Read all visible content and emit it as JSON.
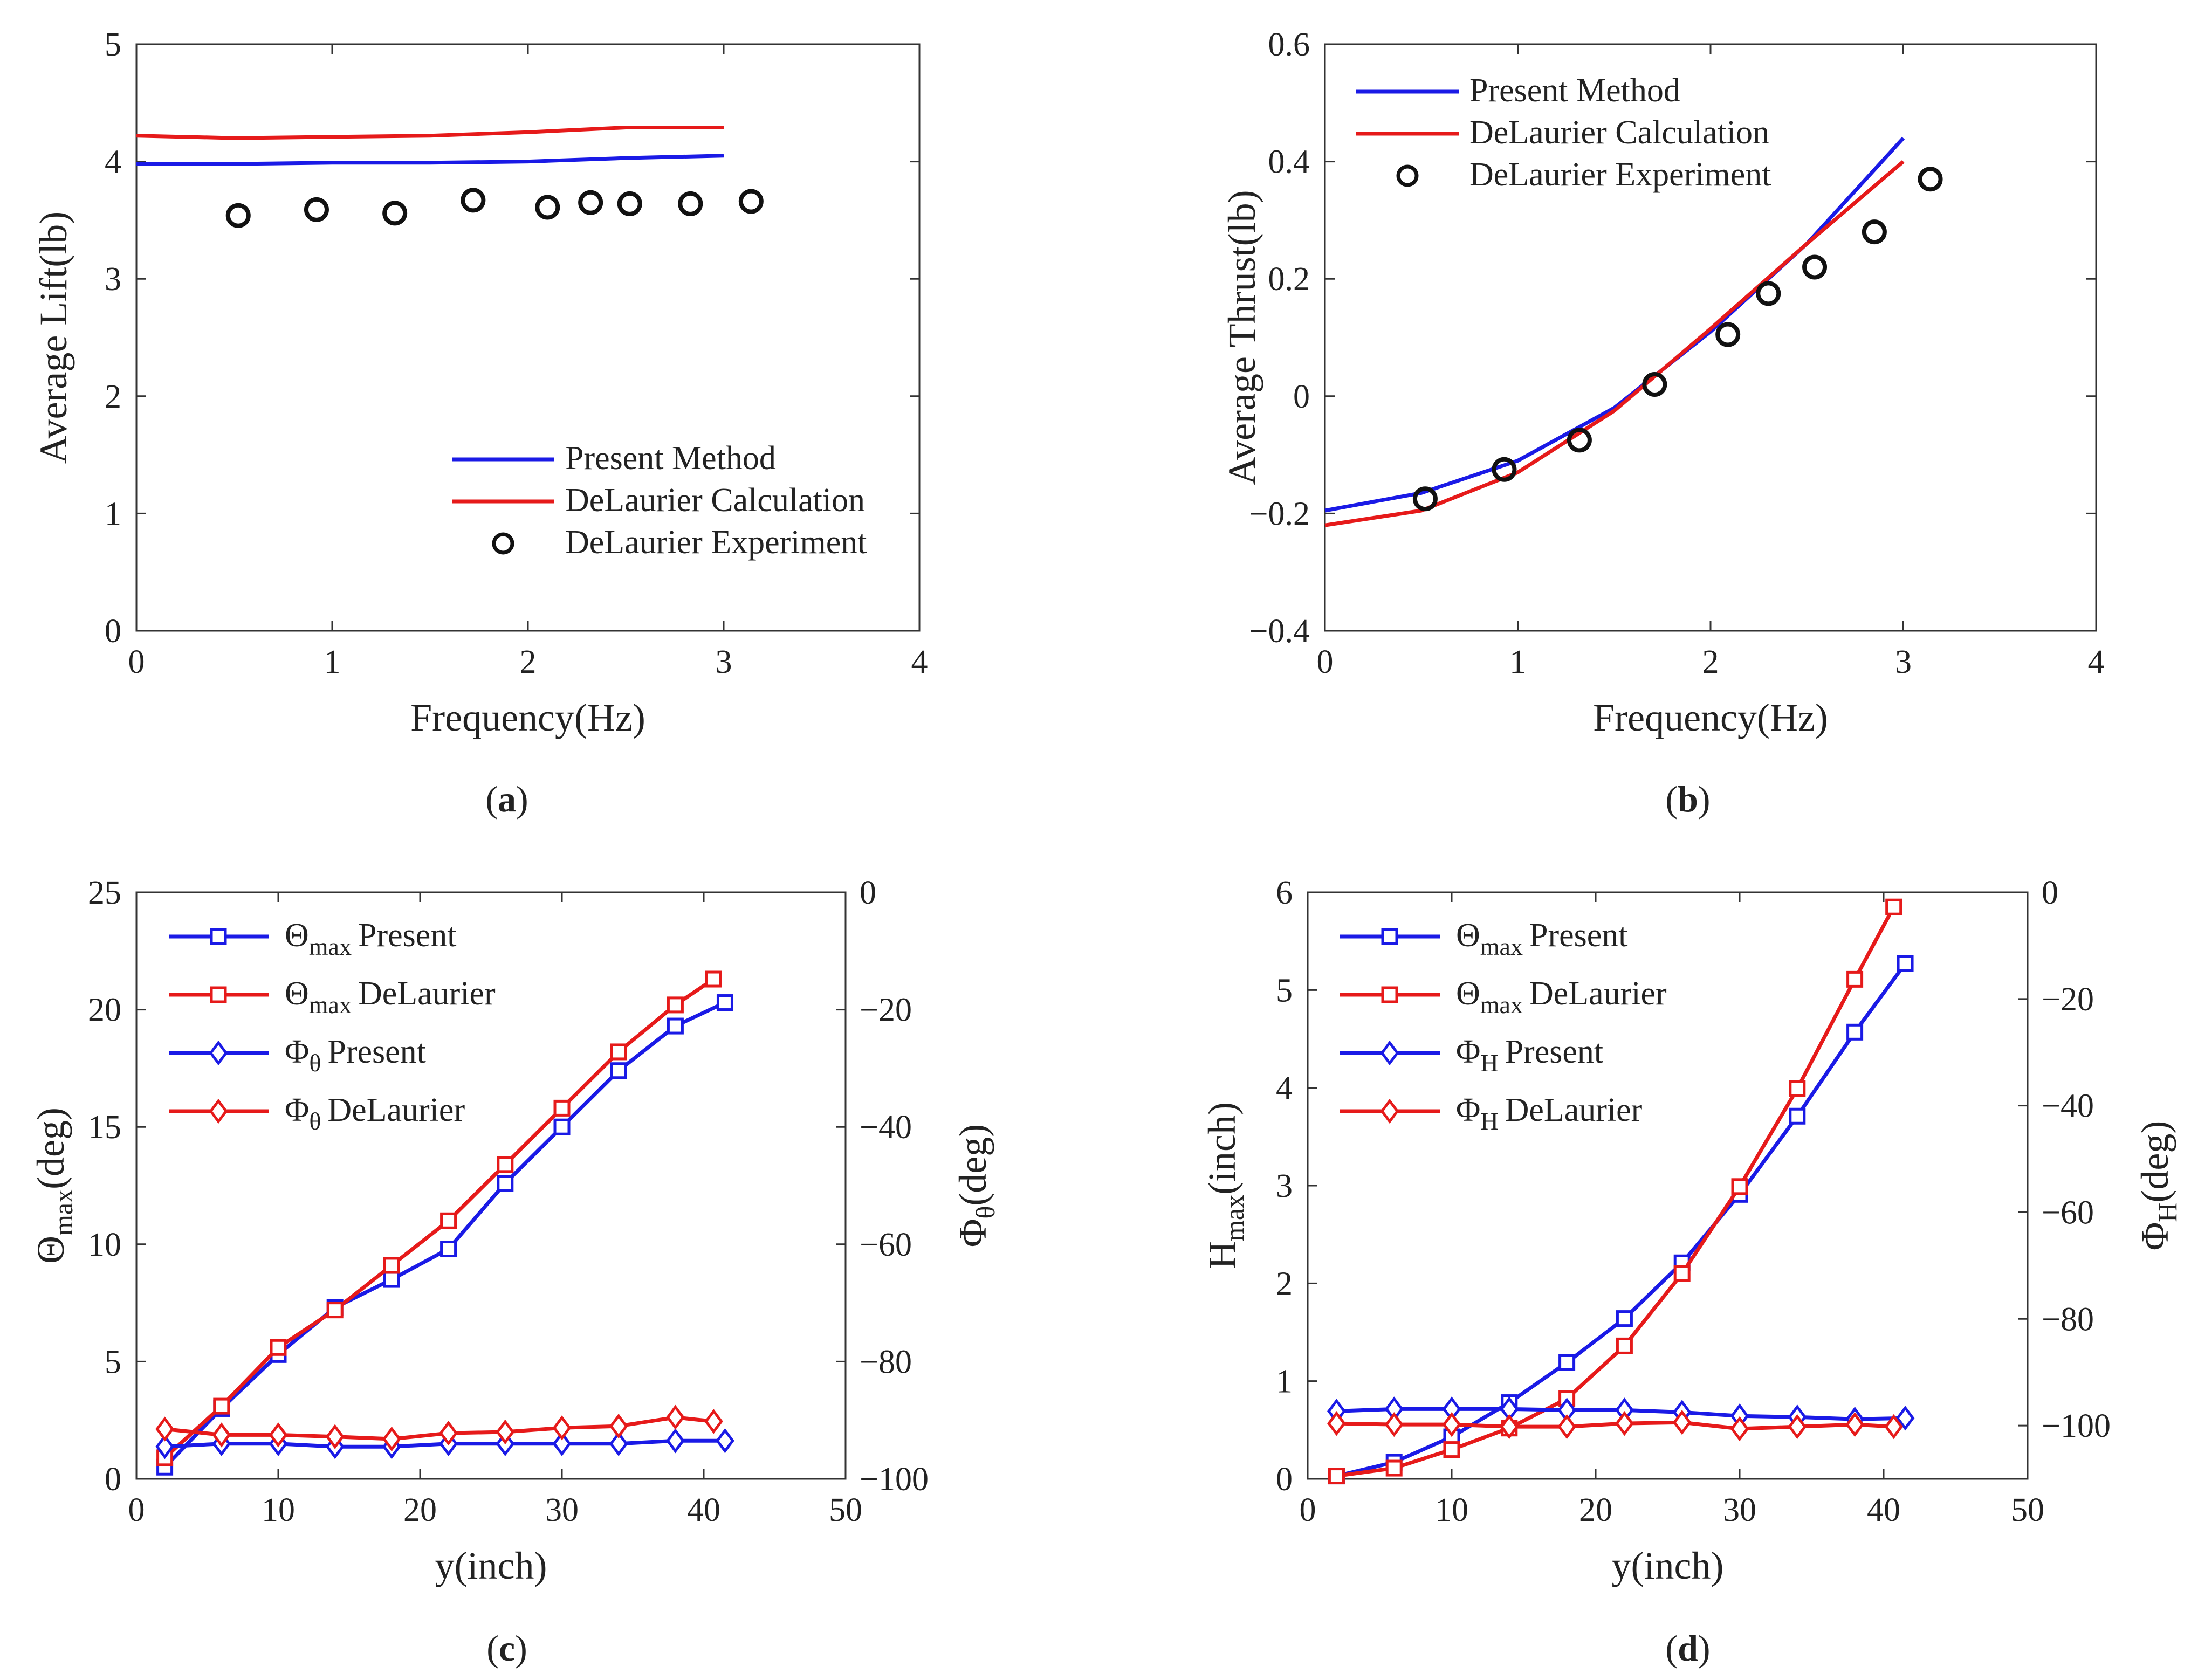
{
  "colors": {
    "present": "#1a1ae6",
    "delaurier_calc": "#e61a1a",
    "experiment": "#111111",
    "axis": "#333333"
  },
  "chart_data": [
    {
      "id": "a",
      "type": "line",
      "caption": "a",
      "xlabel": "Frequency(Hz)",
      "ylabel": "Average Lift(lb)",
      "xlim": [
        0,
        4
      ],
      "ylim": [
        0,
        5
      ],
      "xticks": [
        "0",
        "1",
        "2",
        "3",
        "4"
      ],
      "yticks": [
        "0",
        "1",
        "2",
        "3",
        "4",
        "5"
      ],
      "legend_position": "bottom-right",
      "series": [
        {
          "name": "Present Method",
          "kind": "line",
          "color": "present",
          "x": [
            0,
            0.5,
            1.0,
            1.5,
            2.0,
            2.5,
            3.0
          ],
          "y": [
            3.98,
            3.98,
            3.99,
            3.99,
            4.0,
            4.03,
            4.05
          ]
        },
        {
          "name": "DeLaurier Calculation",
          "kind": "line",
          "color": "delaurier_calc",
          "x": [
            0,
            0.5,
            1.0,
            1.5,
            2.0,
            2.5,
            3.0
          ],
          "y": [
            4.22,
            4.2,
            4.21,
            4.22,
            4.25,
            4.29,
            4.29
          ]
        },
        {
          "name": "DeLaurier Experiment",
          "kind": "circle",
          "color": "experiment",
          "x": [
            0.52,
            0.92,
            1.32,
            1.72,
            2.1,
            2.32,
            2.52,
            2.83,
            3.14
          ],
          "y": [
            3.54,
            3.59,
            3.56,
            3.67,
            3.61,
            3.65,
            3.64,
            3.64,
            3.66
          ]
        }
      ]
    },
    {
      "id": "b",
      "type": "line",
      "caption": "b",
      "xlabel": "Frequency(Hz)",
      "ylabel": "Average Thrust(lb)",
      "xlim": [
        0,
        4
      ],
      "ylim": [
        -0.4,
        0.6
      ],
      "xticks": [
        "0",
        "1",
        "2",
        "3",
        "4"
      ],
      "yticks": [
        "−0.4",
        "−0.2",
        "0",
        "0.2",
        "0.4",
        "0.6"
      ],
      "legend_position": "top-left",
      "series": [
        {
          "name": "Present Method",
          "kind": "line",
          "color": "present",
          "x": [
            0,
            0.5,
            1.0,
            1.5,
            2.0,
            2.5,
            3.0
          ],
          "y": [
            -0.195,
            -0.165,
            -0.11,
            -0.02,
            0.11,
            0.26,
            0.44
          ]
        },
        {
          "name": "DeLaurier Calculation",
          "kind": "line",
          "color": "delaurier_calc",
          "x": [
            0,
            0.5,
            1.0,
            1.5,
            2.0,
            2.5,
            3.0
          ],
          "y": [
            -0.22,
            -0.195,
            -0.13,
            -0.025,
            0.115,
            0.26,
            0.4
          ]
        },
        {
          "name": "DeLaurier Experiment",
          "kind": "circle",
          "color": "experiment",
          "x": [
            0.52,
            0.93,
            1.32,
            1.71,
            2.09,
            2.3,
            2.54,
            2.85,
            3.14
          ],
          "y": [
            -0.175,
            -0.125,
            -0.075,
            0.02,
            0.105,
            0.175,
            0.22,
            0.28,
            0.37
          ]
        }
      ]
    },
    {
      "id": "c",
      "type": "line",
      "caption": "c",
      "xlabel": "y(inch)",
      "ylabel_left": {
        "main": "Θ",
        "sub": "max",
        "rest": "(deg)"
      },
      "ylabel_right": {
        "main": "Φ",
        "sub": "θ",
        "rest": "(deg)"
      },
      "xlim": [
        0,
        50
      ],
      "ylim_left": [
        0,
        25
      ],
      "ylim_right": [
        -100,
        0
      ],
      "xticks": [
        "0",
        "10",
        "20",
        "30",
        "40",
        "50"
      ],
      "yticks_left": [
        "0",
        "5",
        "10",
        "15",
        "20",
        "25"
      ],
      "yticks_right": [
        "−100",
        "−80",
        "−60",
        "−40",
        "−20",
        "0"
      ],
      "legend_position": "top-left",
      "legend": [
        {
          "sym": "Θ",
          "sub": "max",
          "txt": "Present",
          "marker": "square",
          "color": "present"
        },
        {
          "sym": "Θ",
          "sub": "max",
          "txt": "DeLaurier",
          "marker": "square",
          "color": "delaurier_calc"
        },
        {
          "sym": "Φ",
          "sub": "θ",
          "txt": "Present",
          "marker": "diamond",
          "color": "present"
        },
        {
          "sym": "Φ",
          "sub": "θ",
          "txt": "DeLaurier",
          "marker": "diamond",
          "color": "delaurier_calc"
        }
      ],
      "series": [
        {
          "name": "Θmax Present",
          "axis": "left",
          "marker": "square",
          "color": "present",
          "x": [
            2,
            6,
            10,
            14,
            18,
            22,
            26,
            30,
            34,
            38,
            41.5
          ],
          "y": [
            0.5,
            3.0,
            5.3,
            7.3,
            8.5,
            9.8,
            12.6,
            15.0,
            17.4,
            19.3,
            20.3
          ]
        },
        {
          "name": "Θmax DeLaurier",
          "axis": "left",
          "marker": "square",
          "color": "delaurier_calc",
          "x": [
            2,
            6,
            10,
            14,
            18,
            22,
            26,
            30,
            34,
            38,
            40.7
          ],
          "y": [
            0.9,
            3.1,
            5.6,
            7.2,
            9.1,
            11.0,
            13.4,
            15.8,
            18.2,
            20.2,
            21.3
          ]
        },
        {
          "name": "Φθ Present",
          "axis": "right",
          "marker": "diamond",
          "color": "present",
          "x": [
            2,
            6,
            10,
            14,
            18,
            22,
            26,
            30,
            34,
            38,
            41.5
          ],
          "y": [
            -94.5,
            -94.0,
            -94.0,
            -94.5,
            -94.5,
            -94.0,
            -94.0,
            -94.0,
            -94.0,
            -93.5,
            -93.5
          ]
        },
        {
          "name": "Φθ DeLaurier",
          "axis": "right",
          "marker": "diamond",
          "color": "delaurier_calc",
          "x": [
            2,
            6,
            10,
            14,
            18,
            22,
            26,
            30,
            34,
            38,
            40.7
          ],
          "y": [
            -91.5,
            -92.5,
            -92.5,
            -92.8,
            -93.2,
            -92.2,
            -92.0,
            -91.3,
            -91.0,
            -89.5,
            -90.2
          ]
        }
      ]
    },
    {
      "id": "d",
      "type": "line",
      "caption": "d",
      "xlabel": "y(inch)",
      "ylabel_left": {
        "main": "H",
        "sub": "max",
        "rest": "(inch)"
      },
      "ylabel_right": {
        "main": "Φ",
        "sub": "H",
        "rest": "(deg)"
      },
      "xlim": [
        0,
        50
      ],
      "ylim_left": [
        0,
        6
      ],
      "ylim_right": [
        -110,
        0
      ],
      "xticks": [
        "0",
        "10",
        "20",
        "30",
        "40",
        "50"
      ],
      "yticks_left": [
        "0",
        "1",
        "2",
        "3",
        "4",
        "5",
        "6"
      ],
      "yticks_right": [
        "−100",
        "−80",
        "−60",
        "−40",
        "−20",
        "0"
      ],
      "yticks_right_values": [
        -100,
        -80,
        -60,
        -40,
        -20,
        0
      ],
      "legend_position": "top-left",
      "legend": [
        {
          "sym": "Θ",
          "sub": "max",
          "txt": "Present",
          "marker": "square",
          "color": "present"
        },
        {
          "sym": "Θ",
          "sub": "max",
          "txt": "DeLaurier",
          "marker": "square",
          "color": "delaurier_calc"
        },
        {
          "sym": "Φ",
          "sub": "H",
          "txt": "Present",
          "marker": "diamond",
          "color": "present"
        },
        {
          "sym": "Φ",
          "sub": "H",
          "txt": "DeLaurier",
          "marker": "diamond",
          "color": "delaurier_calc"
        }
      ],
      "series": [
        {
          "name": "Hmax Present",
          "axis": "left",
          "marker": "square",
          "color": "present",
          "x": [
            2,
            6,
            10,
            14,
            18,
            22,
            26,
            30,
            34,
            38,
            41.5
          ],
          "y": [
            0.03,
            0.17,
            0.43,
            0.78,
            1.19,
            1.64,
            2.21,
            2.91,
            3.71,
            4.57,
            5.27
          ]
        },
        {
          "name": "Hmax DeLaurier",
          "axis": "left",
          "marker": "square",
          "color": "delaurier_calc",
          "x": [
            2,
            6,
            10,
            14,
            18,
            22,
            26,
            30,
            34,
            38,
            40.7
          ],
          "y": [
            0.03,
            0.11,
            0.3,
            0.52,
            0.82,
            1.36,
            2.1,
            2.99,
            3.99,
            5.11,
            5.85
          ]
        },
        {
          "name": "ΦH Present",
          "axis": "right",
          "marker": "diamond",
          "color": "present",
          "x": [
            2,
            6,
            10,
            14,
            18,
            22,
            26,
            30,
            34,
            38,
            41.5
          ],
          "y": [
            -97.3,
            -96.9,
            -96.9,
            -96.9,
            -97.1,
            -97.1,
            -97.5,
            -98.2,
            -98.4,
            -98.8,
            -98.6
          ]
        },
        {
          "name": "ΦH DeLaurier",
          "axis": "right",
          "marker": "diamond",
          "color": "delaurier_calc",
          "x": [
            2,
            6,
            10,
            14,
            18,
            22,
            26,
            30,
            34,
            38,
            40.7
          ],
          "y": [
            -99.6,
            -99.8,
            -99.8,
            -100.2,
            -100.2,
            -99.6,
            -99.4,
            -100.6,
            -100.2,
            -99.8,
            -100.2
          ]
        }
      ]
    }
  ]
}
